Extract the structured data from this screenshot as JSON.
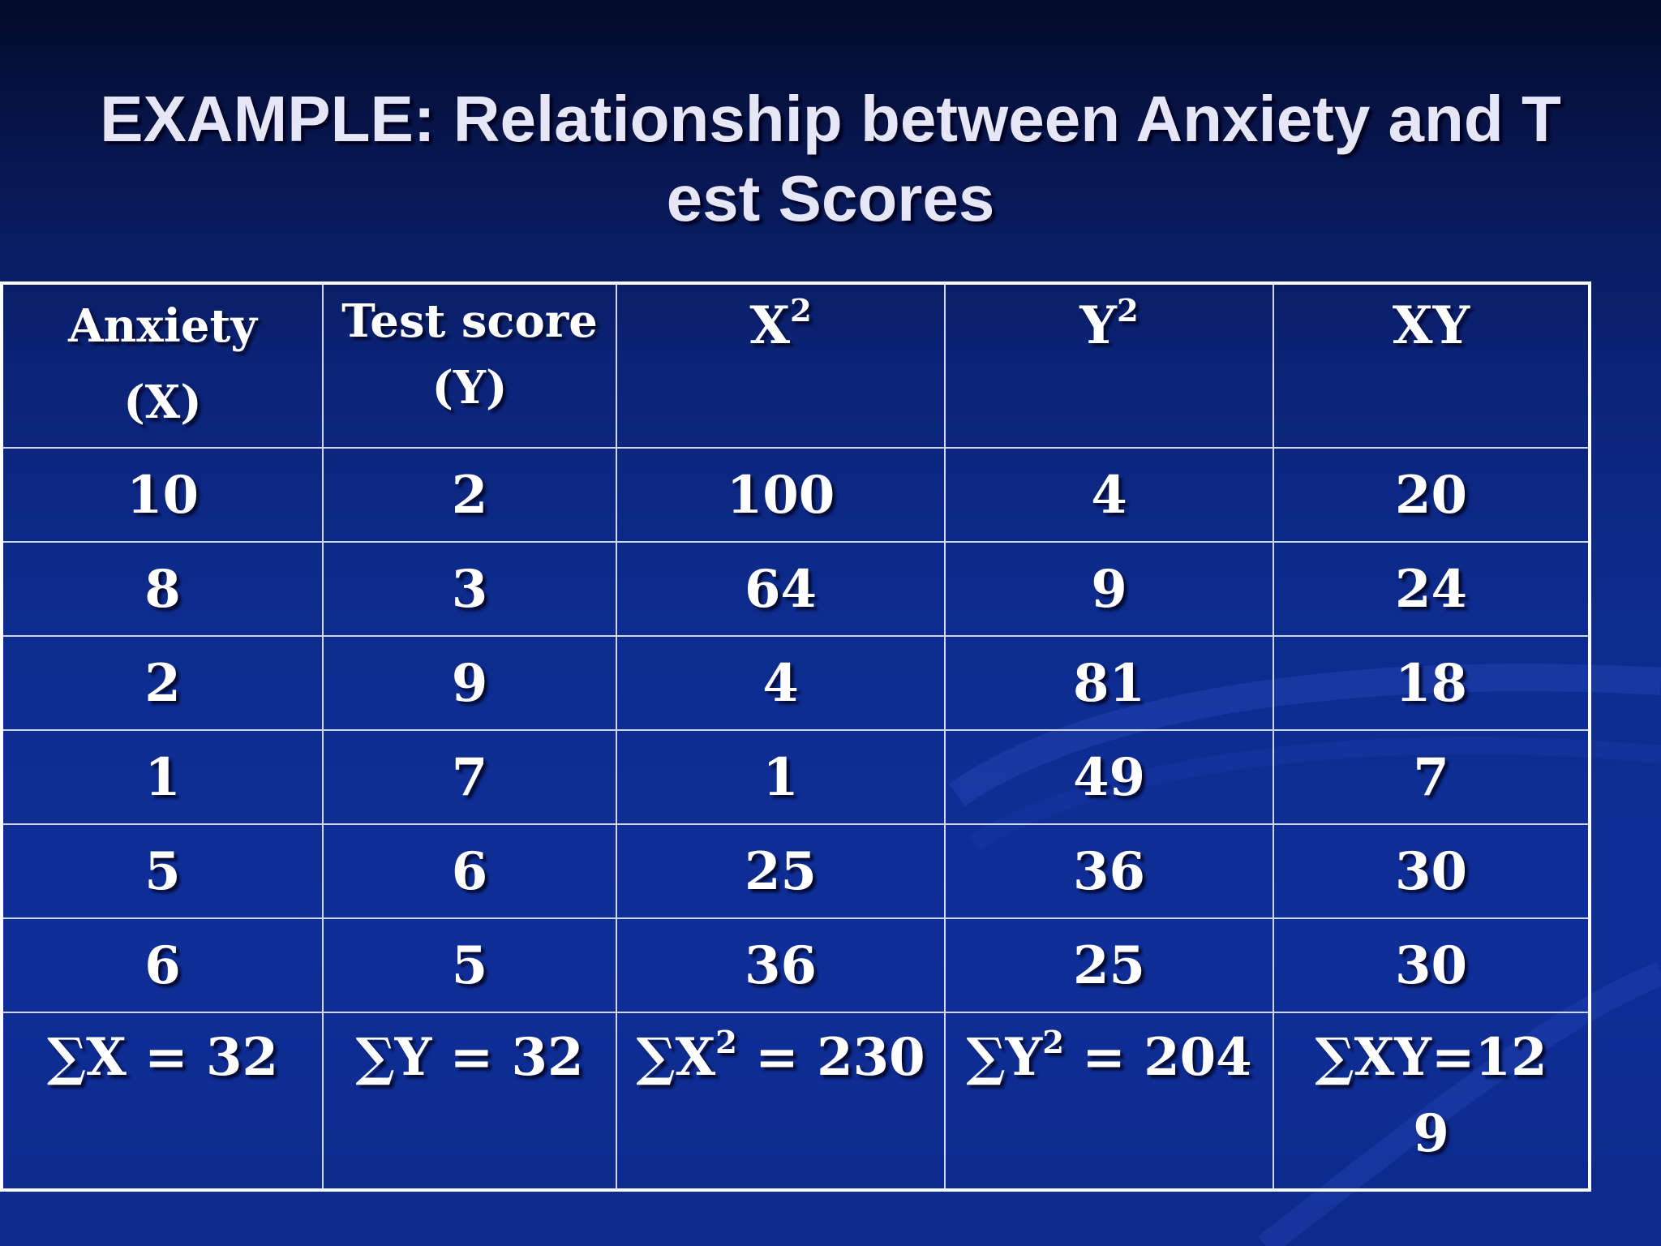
{
  "title": {
    "line1": "EXAMPLE: Relationship between Anxiety and T",
    "line2": "est Scores"
  },
  "table": {
    "headers": [
      {
        "line1": "Anxiety",
        "line2": "(X)"
      },
      {
        "line1": "Test score",
        "line2": "(Y)"
      },
      {
        "base": "X",
        "sup": "2"
      },
      {
        "base": "Y",
        "sup": "2"
      },
      {
        "text": "XY"
      }
    ],
    "rows": [
      [
        "10",
        "2",
        "100",
        "4",
        "20"
      ],
      [
        "8",
        "3",
        "64",
        "9",
        "24"
      ],
      [
        "2",
        "9",
        "4",
        "81",
        "18"
      ],
      [
        "1",
        "7",
        "1",
        "49",
        "7"
      ],
      [
        "5",
        "6",
        "25",
        "36",
        "30"
      ],
      [
        "6",
        "5",
        "36",
        "25",
        "30"
      ]
    ],
    "sums": {
      "sum_x": "∑X = 32",
      "sum_y": "∑Y = 32",
      "sum_x2_base": "∑X",
      "sum_x2_sup": "2",
      "sum_x2_rest": " = 230",
      "sum_y2_base": "∑Y",
      "sum_y2_sup": "2",
      "sum_y2_rest": " = 204",
      "sum_xy_line1": "∑XY=12",
      "sum_xy_line2": "9"
    }
  }
}
